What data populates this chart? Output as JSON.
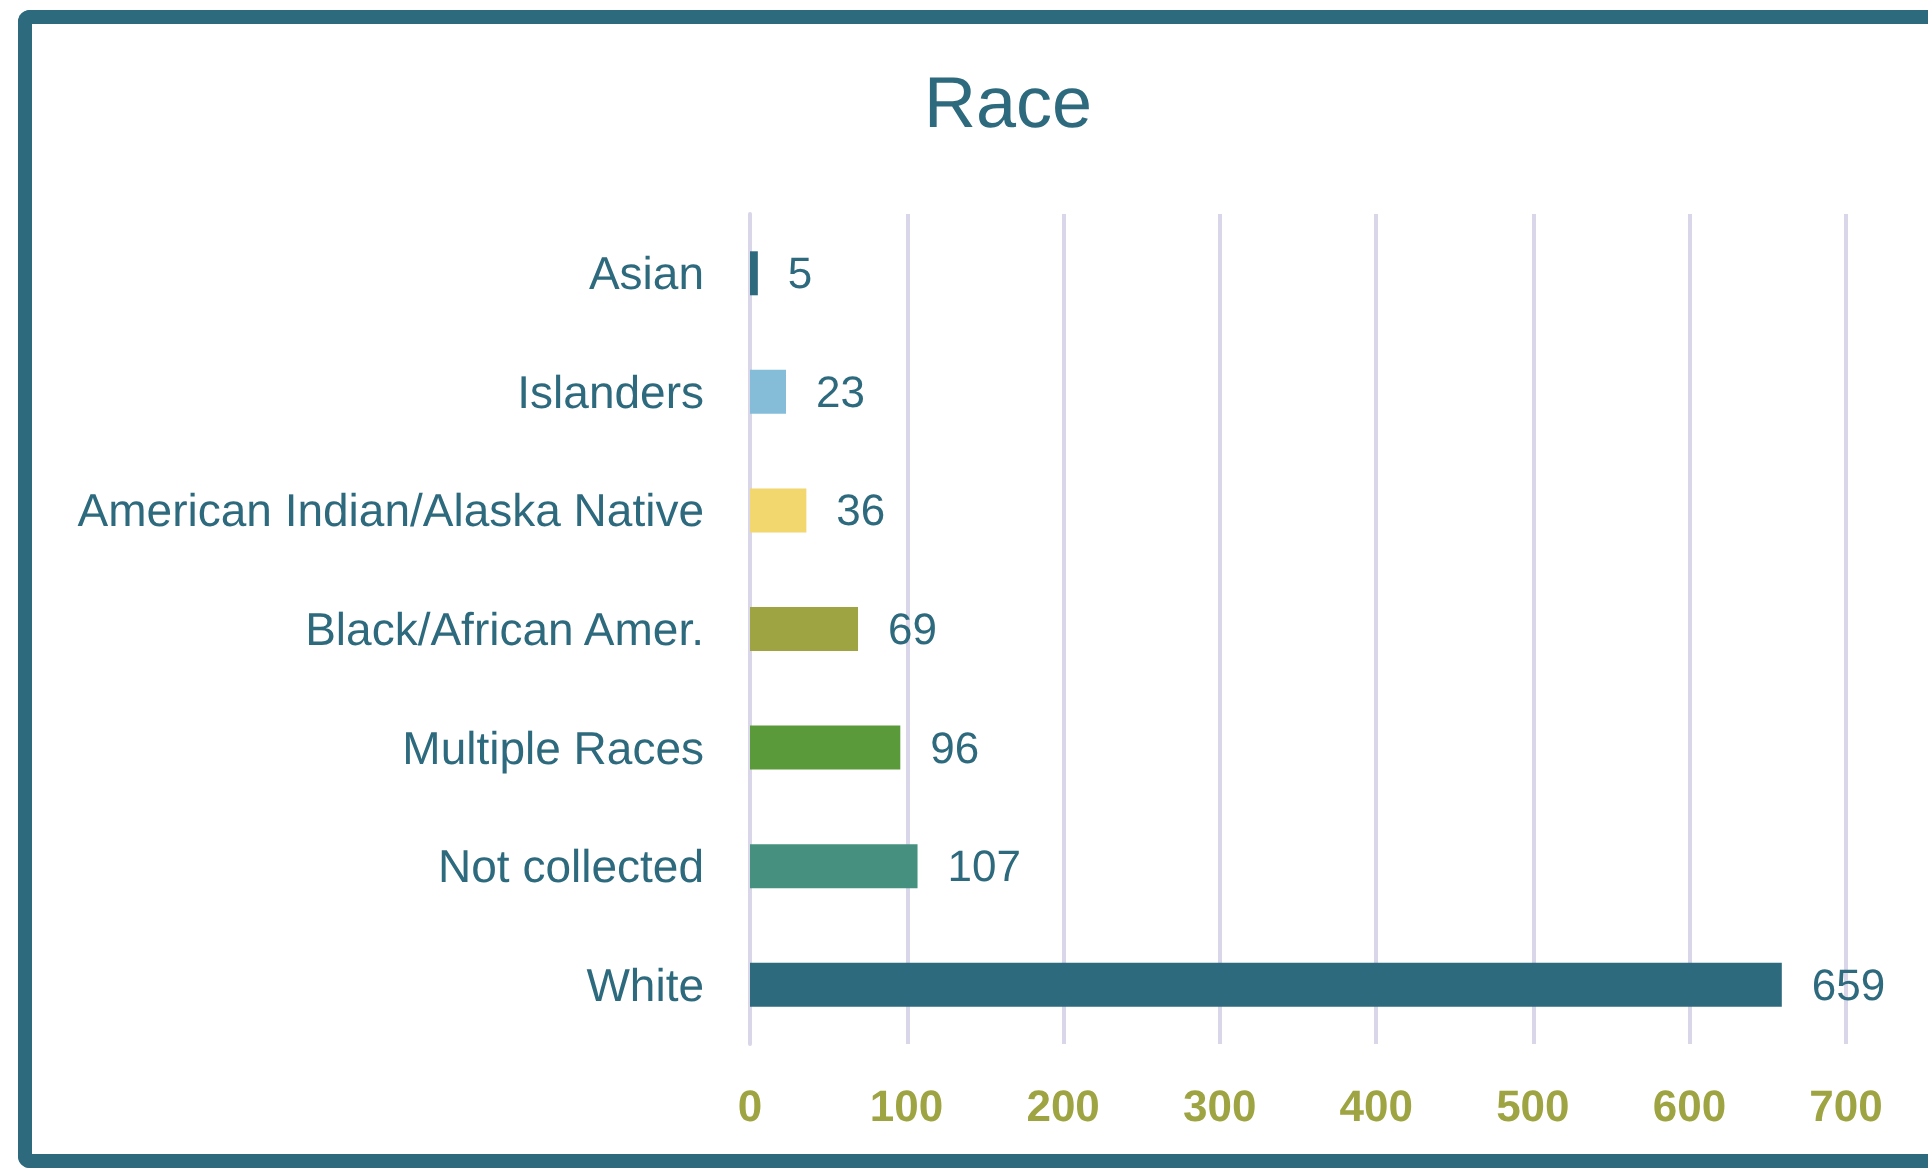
{
  "chart_data": {
    "type": "bar",
    "orientation": "horizontal",
    "title": "Race",
    "categories": [
      "Asian",
      "Islanders",
      "American Indian/Alaska Native",
      "Black/African Amer.",
      "Multiple Races",
      "Not collected",
      "White"
    ],
    "values": [
      5,
      23,
      36,
      69,
      96,
      107,
      659
    ],
    "colors": [
      "#2e6a7e",
      "#85bcd8",
      "#f2d66e",
      "#9ea442",
      "#5b9a3a",
      "#46907f",
      "#2e6a7e"
    ],
    "xlim": [
      0,
      700
    ],
    "xticks": [
      0,
      100,
      200,
      300,
      400,
      500,
      600,
      700
    ],
    "grid": "x",
    "data_labels": true
  }
}
